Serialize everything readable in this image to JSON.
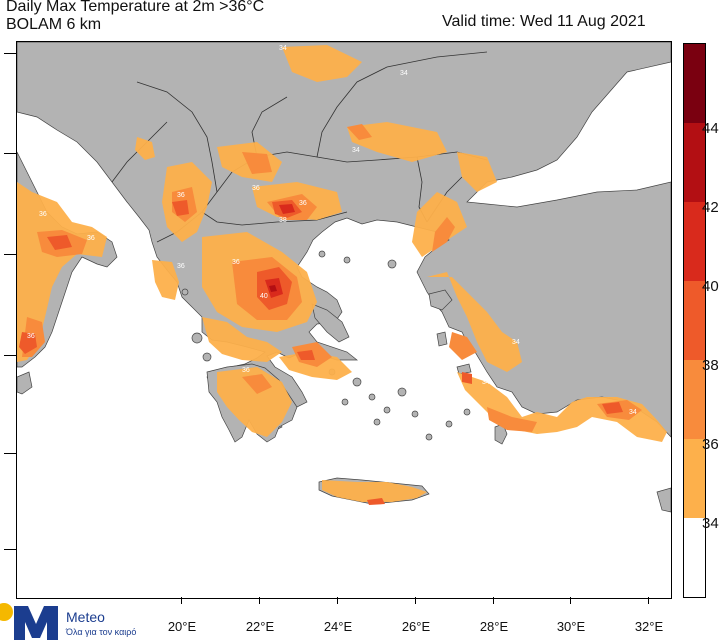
{
  "header": {
    "title_line1": "Daily Max Temperature at 2m >36°C",
    "title_line2": "BOLAM 6 km",
    "valid_time": "Valid time: Wed 11 Aug 2021"
  },
  "map": {
    "land_color": "#b3b3b3",
    "sea_color": "#ffffff",
    "border_color": "#333333",
    "x_axis_labels": [
      "20°E",
      "22°E",
      "24°E",
      "26°E",
      "28°E",
      "30°E",
      "32°E"
    ],
    "contour_labels": [
      "34",
      "34",
      "34",
      "36",
      "36",
      "36",
      "36",
      "36",
      "38",
      "40",
      "36",
      "36",
      "34",
      "36",
      "34",
      "34",
      "36"
    ]
  },
  "legend": {
    "levels": [
      "34",
      "36",
      "38",
      "40",
      "42",
      "44"
    ],
    "colors": {
      "below_34": "#ffffff",
      "34_36": "#fdb04b",
      "36_38": "#f88b3c",
      "38_40": "#ee5a2a",
      "40_42": "#d92a1c",
      "42_44": "#b30f13",
      "above_44": "#7a0010"
    }
  },
  "branding": {
    "name": "Meteo",
    "tagline": "Όλα για τον καιρό"
  }
}
